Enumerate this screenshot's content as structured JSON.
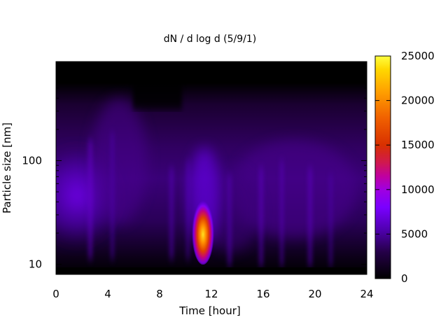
{
  "chart_data": {
    "type": "heatmap",
    "title": "dN / d log d (5/9/1)",
    "xlabel": "Time [hour]",
    "ylabel": "Particle size [nm]",
    "xlim": [
      0,
      24
    ],
    "ylim": [
      8,
      900
    ],
    "y_scale": "log",
    "x_ticks": [
      0,
      4,
      8,
      12,
      16,
      20,
      24
    ],
    "y_ticks": [
      10,
      100
    ],
    "colorbar": {
      "range": [
        0,
        25000
      ],
      "ticks": [
        0,
        5000,
        10000,
        15000,
        20000,
        25000
      ],
      "colormap": [
        "#000000",
        "#3a0070",
        "#7a00ff",
        "#b000c0",
        "#d02000",
        "#ff8000",
        "#ffff00"
      ]
    },
    "grid": false,
    "background_color": "#000000",
    "hotspot": {
      "time_hour": 11.5,
      "size_nm": 22,
      "value": 22000
    }
  }
}
